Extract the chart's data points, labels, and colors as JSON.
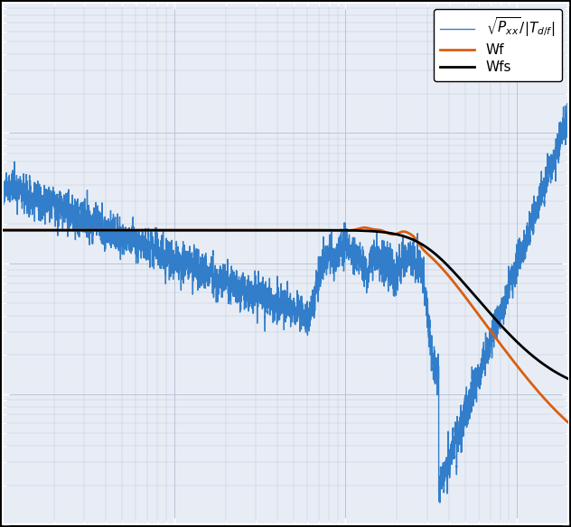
{
  "bg_color": "#e8edf5",
  "fig_bg": "#000000",
  "line_blue_color": "#2878c8",
  "line_orange_color": "#d95f10",
  "line_black_color": "#000000",
  "grid_color": "#b8c4d8",
  "legend_labels": [
    "$\\sqrt{P_{xx}}/|T_{d/f}|$",
    "Wf",
    "Wfs"
  ],
  "xlim": [
    0.1,
    200
  ],
  "ylim": [
    0.001,
    10.0
  ],
  "spine_color": "#ffffff",
  "seed": 42
}
